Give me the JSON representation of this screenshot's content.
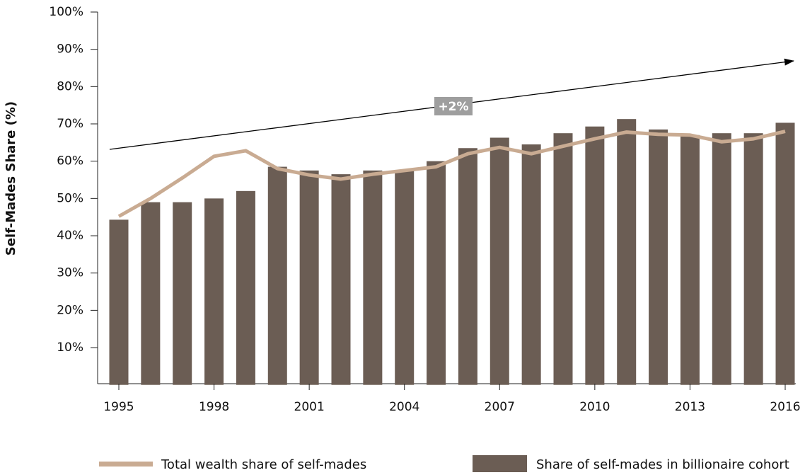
{
  "chart_data": {
    "type": "bar",
    "y_label": "Self-Mades Share (%)",
    "annotation": "+2%",
    "categories": [
      "1995",
      null,
      null,
      "1998",
      null,
      null,
      "2001",
      null,
      null,
      "2004",
      null,
      null,
      "2007",
      null,
      null,
      "2010",
      null,
      null,
      "2013",
      null,
      null,
      "2016"
    ],
    "series": [
      {
        "name": "Share of self-mades in billionaire cohort",
        "type": "bar",
        "color": "#6b5d54",
        "values": [
          44.3,
          49,
          49,
          50,
          52,
          58.5,
          57.5,
          56.5,
          57.5,
          57.5,
          60,
          63.5,
          66.3,
          64.5,
          67.5,
          69.3,
          71.3,
          68.5,
          67,
          67.5,
          67.5,
          70.3
        ]
      },
      {
        "name": "Total wealth share of self-mades",
        "type": "line",
        "color": "#c9ab92",
        "values": [
          45.2,
          50,
          55.5,
          61.3,
          62.8,
          58,
          56.3,
          55.2,
          56.5,
          57.5,
          58.5,
          62,
          63.7,
          62,
          64,
          66,
          67.8,
          67.2,
          67,
          65.2,
          66,
          68
        ]
      }
    ],
    "ylim": [
      0,
      100
    ],
    "yticks": [
      {
        "value": 10,
        "label": "10%"
      },
      {
        "value": 20,
        "label": "20%"
      },
      {
        "value": 30,
        "label": "30%"
      },
      {
        "value": 40,
        "label": "40%"
      },
      {
        "value": 50,
        "label": "50%"
      },
      {
        "value": 60,
        "label": "60%"
      },
      {
        "value": 70,
        "label": "70%"
      },
      {
        "value": 80,
        "label": "80%"
      },
      {
        "value": 90,
        "label": "90%"
      },
      {
        "value": 100,
        "label": "100%"
      }
    ]
  }
}
